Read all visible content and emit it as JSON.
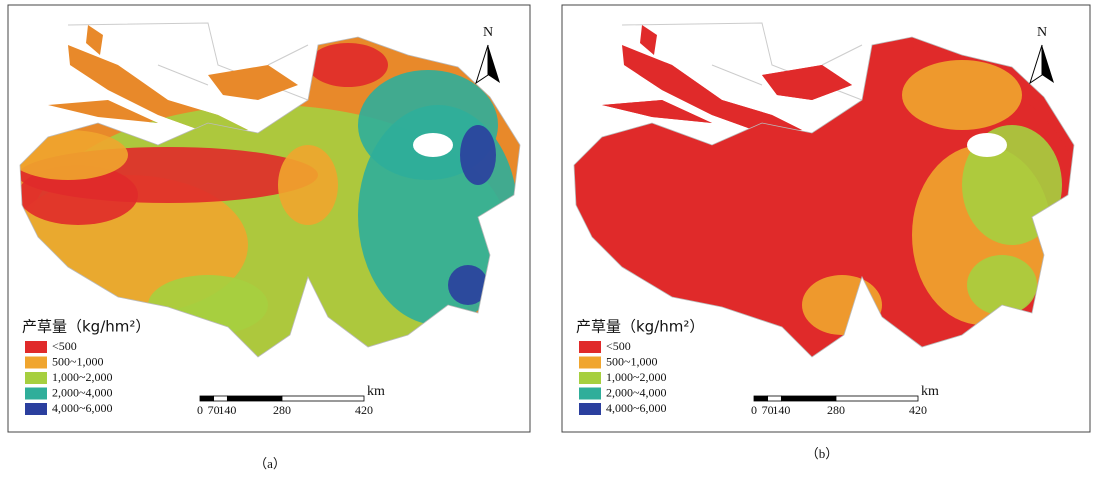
{
  "panels": [
    {
      "caption": "（a）",
      "north": "N",
      "legend": {
        "title": "产草量（kg/hm²）",
        "items": [
          {
            "label": "<500",
            "color": "#e02a2a"
          },
          {
            "label": "500~1,000",
            "color": "#f0a52e"
          },
          {
            "label": "1,000~2,000",
            "color": "#a6cf3f"
          },
          {
            "label": "2,000~4,000",
            "color": "#2fae9a"
          },
          {
            "label": "4,000~6,000",
            "color": "#2b3f9e"
          }
        ]
      },
      "scale": {
        "unit": "km",
        "ticks": [
          "0",
          "70",
          "140",
          "280",
          "420"
        ]
      }
    },
    {
      "caption": "（b）",
      "north": "N",
      "legend": {
        "title": "产草量（kg/hm²）",
        "items": [
          {
            "label": "<500",
            "color": "#e02a2a"
          },
          {
            "label": "500~1,000",
            "color": "#f0a52e"
          },
          {
            "label": "1,000~2,000",
            "color": "#a6cf3f"
          },
          {
            "label": "2,000~4,000",
            "color": "#2fae9a"
          },
          {
            "label": "4,000~6,000",
            "color": "#2b3f9e"
          }
        ]
      },
      "scale": {
        "unit": "km",
        "ticks": [
          "0",
          "70",
          "140",
          "280",
          "420"
        ]
      }
    }
  ]
}
